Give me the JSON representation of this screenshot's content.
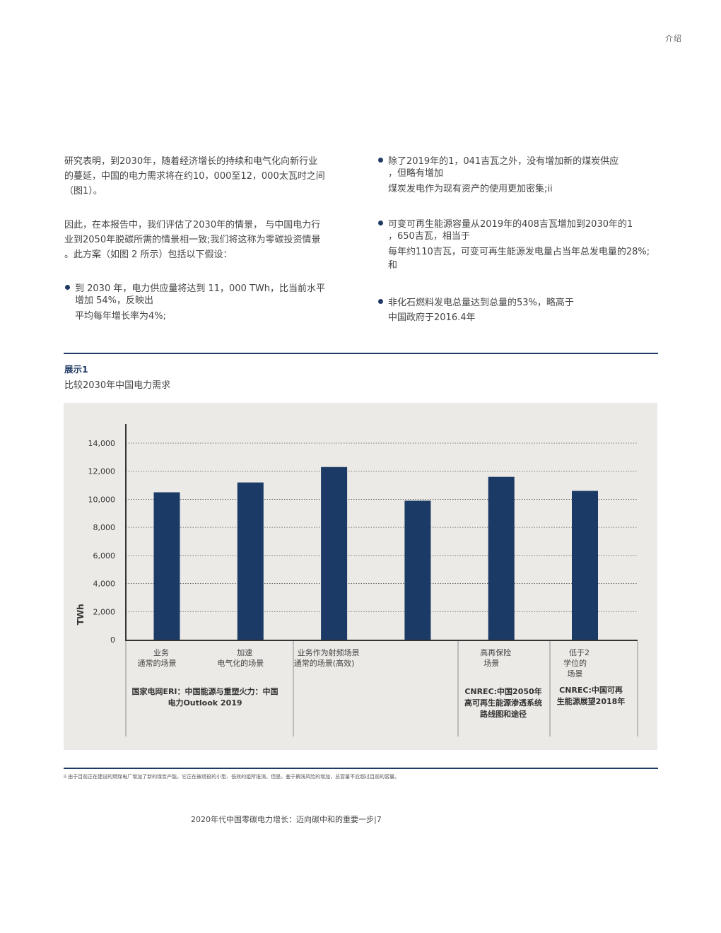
{
  "header": {
    "section": "介绍"
  },
  "left_column": {
    "paragraph1": [
      "研究表明，到2030年，随着经济增长的持续和电气化向新行业",
      "的蔓延，中国的电力需求将在约10，000至12，000太瓦时之间",
      "（图1）。"
    ],
    "paragraph2": [
      "因此，在本报告中，我们评估了2030年的情景，  与中国电力行",
      "业到2050年脱碳所需的情景相一致;我们将这称为零碳投资情景",
      "。此方案（如图 2 所示）包括以下假设："
    ],
    "bullet1": [
      "到 2030 年，电力供应量将达到 11，000 TWh，比当前水平",
      "增加 54%，反映出",
      "平均每年增长率为4%;"
    ]
  },
  "right_column": {
    "bullet2": [
      "除了2019年的1，041吉瓦之外，没有增加新的煤炭供应",
      "，但略有增加",
      "煤炭发电作为现有资产的使用更加密集;ii"
    ],
    "bullet3": [
      "可变可再生能源容量从2019年的408吉瓦增加到2030年的1",
      "，650吉瓦，相当于",
      "每年约110吉瓦，可变可再生能源发电量占当年总发电量的28%;",
      "和"
    ],
    "bullet4": [
      "非化石燃料发电总量达到总量的53%，略高于",
      "中国政府于2016.4年"
    ]
  },
  "exhibit": {
    "label": "展示1",
    "title": "比较2030年中国电力需求"
  },
  "chart_data": {
    "type": "bar",
    "ylabel": "TWh",
    "ylim": [
      0,
      14000
    ],
    "yticks": [
      0,
      2000,
      4000,
      6000,
      8000,
      10000,
      12000,
      14000
    ],
    "ytick_labels": [
      "0",
      "2,000",
      "4,000",
      "6,000",
      "8,000",
      "10,000",
      "12,000",
      "14,000"
    ],
    "grid": true,
    "categories": [
      [
        "业务",
        "通常的场景"
      ],
      [
        "加速",
        "电气化的场景"
      ],
      [
        "业务作为射频场景",
        "通常的场景(高效)"
      ],
      [],
      [
        "高再保险",
        "场景"
      ],
      [
        "低于2",
        "学位的",
        "场景"
      ]
    ],
    "values": [
      10500,
      11200,
      12300,
      9900,
      11600,
      10600
    ],
    "color": "#1b3a66",
    "sources": [
      [
        "国家电网ERI：中国能源与重塑火力：中国",
        "电力Outlook 2019"
      ],
      [
        "CNREC:中国2050年",
        "高可再生能源渗透系统",
        "路线图和途径"
      ],
      [
        "CNREC:中国可再",
        "生能源展望2018年"
      ]
    ]
  },
  "footnote": "ii 由于目前正在建设的燃煤电厂增加了新的煤炭产能，它正在被退役的小型、低效的组所抵消。但是，鉴于搁浅风险的增加，总容量不应超过目前的容量。",
  "footer": "2020年代中国零碳电力增长：迈向碳中和的重要一步|7"
}
